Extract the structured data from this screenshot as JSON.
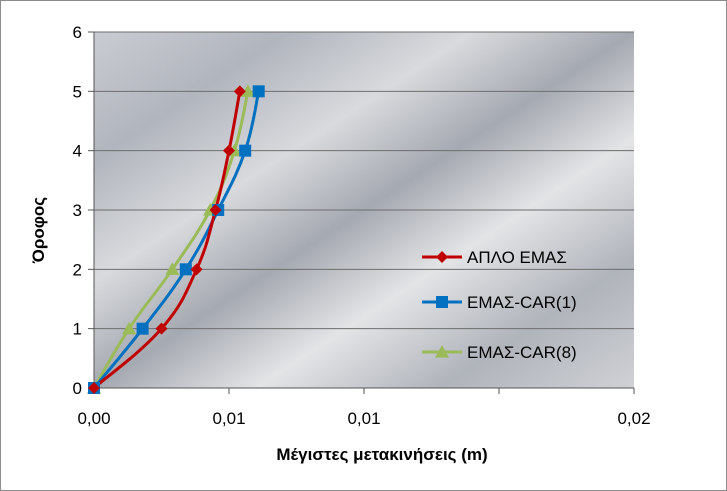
{
  "chart_data": {
    "type": "line",
    "title": "",
    "xlabel": "Μέγιστες μετακινήσεις  (m)",
    "ylabel": "Όροφος",
    "xlim": [
      0,
      0.02
    ],
    "ylim": [
      0,
      6
    ],
    "x_ticks": [
      "0,00",
      "0,01",
      "0,01",
      "0,02"
    ],
    "x_tick_values": [
      0,
      0.005,
      0.01,
      0.015
    ],
    "y_ticks": [
      "0",
      "1",
      "2",
      "3",
      "4",
      "5",
      "6"
    ],
    "y_tick_values": [
      0,
      1,
      2,
      3,
      4,
      5,
      6
    ],
    "grid": "horizontal",
    "plot_background": "gray gradient",
    "legend_position": "right",
    "series": [
      {
        "name": "ΑΠΛΟ ΕΜΑΣ",
        "color": "#c00000",
        "marker": "diamond",
        "x": [
          0,
          0.0025,
          0.0038,
          0.0045,
          0.005,
          0.0054
        ],
        "y": [
          0,
          1,
          2,
          3,
          4,
          5
        ]
      },
      {
        "name": "ΕΜΑΣ-CAR(1)",
        "color": "#0070c0",
        "marker": "square",
        "x": [
          0,
          0.0018,
          0.0034,
          0.0046,
          0.0056,
          0.0061
        ],
        "y": [
          0,
          1,
          2,
          3,
          4,
          5
        ]
      },
      {
        "name": "ΕΜΑΣ-CAR(8)",
        "color": "#9bbb59",
        "marker": "triangle",
        "x": [
          0,
          0.0013,
          0.0029,
          0.0043,
          0.0052,
          0.0057
        ],
        "y": [
          0,
          1,
          2,
          3,
          4,
          5
        ]
      }
    ]
  }
}
